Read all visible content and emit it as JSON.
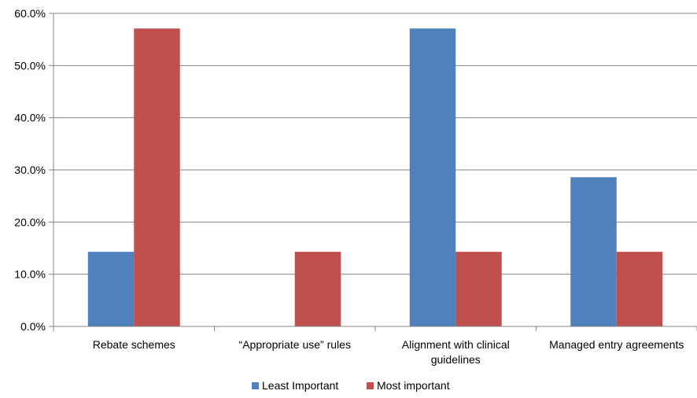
{
  "chart_data": {
    "type": "bar",
    "title": "",
    "xlabel": "",
    "ylabel": "",
    "categories": [
      [
        "Rebate schemes"
      ],
      [
        "“Appropriate use” rules"
      ],
      [
        "Alignment with clinical",
        "guidelines"
      ],
      [
        "Managed entry agreements"
      ]
    ],
    "series": [
      {
        "name": "Least Important",
        "color": "#4F81BD",
        "values": [
          14.3,
          0.0,
          57.1,
          28.6
        ]
      },
      {
        "name": "Most important",
        "color": "#C0504D",
        "values": [
          57.1,
          14.3,
          14.3,
          14.3
        ]
      }
    ],
    "ylim": [
      0,
      60
    ],
    "yticks": [
      0,
      10,
      20,
      30,
      40,
      50,
      60
    ],
    "ytick_labels": [
      "0.0%",
      "10.0%",
      "20.0%",
      "30.0%",
      "40.0%",
      "50.0%",
      "60.0%"
    ],
    "grid": true,
    "legend_position": "bottom"
  }
}
